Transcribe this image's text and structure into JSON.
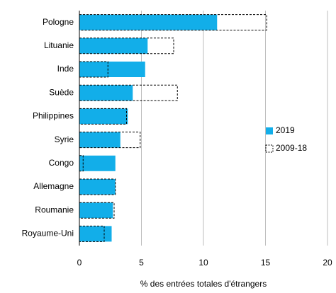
{
  "chart_data": {
    "type": "bar",
    "orientation": "horizontal",
    "categories": [
      "Pologne",
      "Lituanie",
      "Inde",
      "Suède",
      "Philippines",
      "Syrie",
      "Congo",
      "Allemagne",
      "Roumanie",
      "Royaume-Uni"
    ],
    "series": [
      {
        "name": "2019",
        "color": "#12aee9",
        "style": "filled",
        "values": [
          11.1,
          5.5,
          5.3,
          4.3,
          3.9,
          3.3,
          2.9,
          2.9,
          2.7,
          2.6
        ]
      },
      {
        "name": "2009-18",
        "color": "#000000",
        "style": "dashed",
        "values": [
          15.1,
          7.6,
          2.3,
          7.9,
          3.8,
          4.9,
          0.3,
          2.9,
          2.8,
          2.0
        ]
      }
    ],
    "xlabel": "% des entrées totales d'étrangers",
    "xlim": [
      0,
      20
    ],
    "xticks": [
      0,
      5,
      10,
      15,
      20
    ],
    "grid": true,
    "legend": "right"
  }
}
